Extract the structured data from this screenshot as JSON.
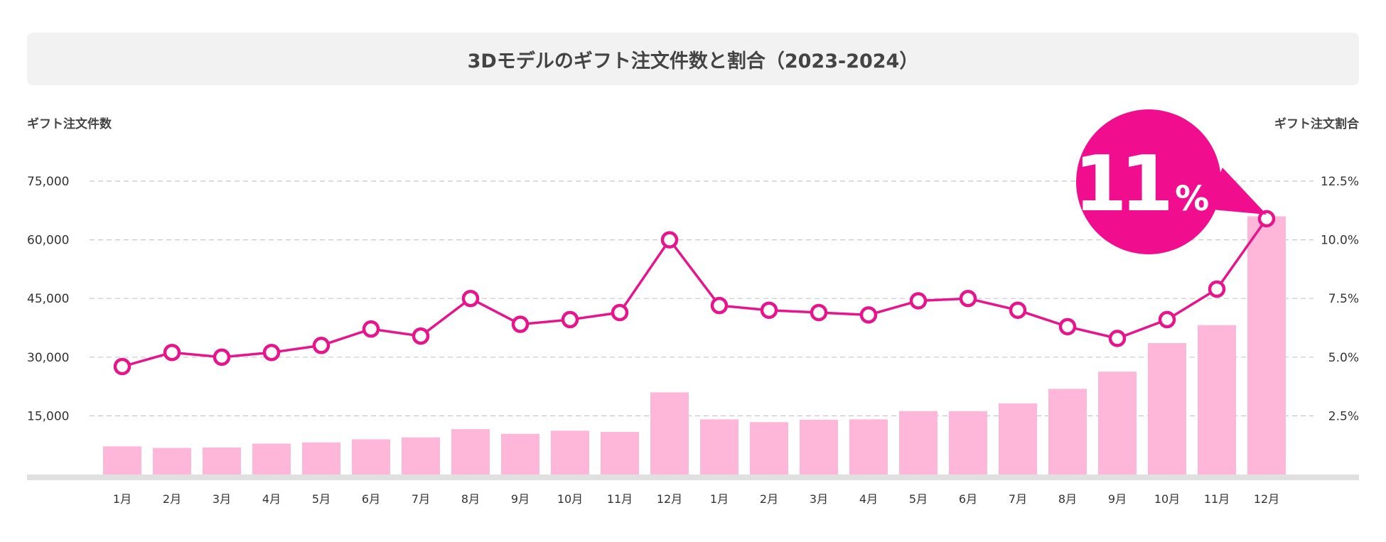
{
  "chart_data": {
    "type": "bar+line",
    "title": "3Dモデルのギフト注文件数と割合（2023-2024）",
    "y_left_label": "ギフト注文件数",
    "y_right_label": "ギフト注文割合",
    "y_left_ticks": [
      "15,000",
      "30,000",
      "45,000",
      "60,000",
      "75,000"
    ],
    "y_right_ticks": [
      "2.5%",
      "5.0%",
      "7.5%",
      "10.0%",
      "12.5%"
    ],
    "ylim_left": [
      0,
      75000
    ],
    "ylim_right": [
      0,
      12.5
    ],
    "categories": [
      "1月",
      "2月",
      "3月",
      "4月",
      "5月",
      "6月",
      "7月",
      "8月",
      "9月",
      "10月",
      "11月",
      "12月",
      "1月",
      "2月",
      "3月",
      "4月",
      "5月",
      "6月",
      "7月",
      "8月",
      "9月",
      "10月",
      "11月",
      "12月"
    ],
    "series": [
      {
        "kind": "bar",
        "axis": "left",
        "values": [
          7200,
          6800,
          6900,
          7900,
          8200,
          9000,
          9500,
          11600,
          10400,
          11200,
          10900,
          21000,
          14100,
          13400,
          14000,
          14100,
          16200,
          16200,
          18200,
          21900,
          26300,
          33600,
          38200,
          66000
        ]
      },
      {
        "kind": "line",
        "axis": "right",
        "values": [
          4.6,
          5.2,
          5.0,
          5.2,
          5.5,
          6.2,
          5.9,
          7.5,
          6.4,
          6.6,
          6.9,
          10.0,
          7.2,
          7.0,
          6.9,
          6.8,
          7.4,
          7.5,
          7.0,
          6.3,
          5.8,
          6.6,
          7.9,
          10.9
        ]
      }
    ],
    "grid": true,
    "colors": {
      "bar": "#ffb7d9",
      "line": "#e6158c",
      "callout": "#f00e8f",
      "title_bg": "#f2f2f2"
    },
    "callout": {
      "value": "11",
      "unit": "%"
    }
  }
}
